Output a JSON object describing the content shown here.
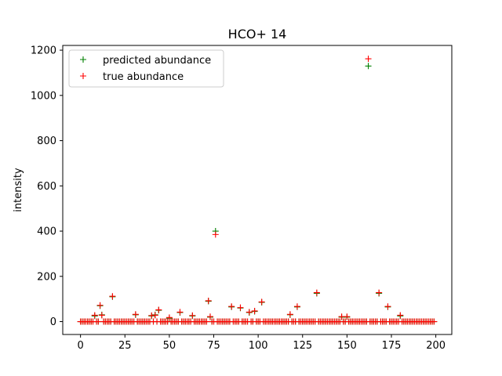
{
  "chart_data": {
    "type": "scatter",
    "title": "HCO+ 14",
    "xlabel": "",
    "ylabel": "intensity",
    "xlim": [
      -10,
      209
    ],
    "ylim": [
      -57,
      1221
    ],
    "xticks": [
      0,
      25,
      50,
      75,
      100,
      125,
      150,
      175,
      200
    ],
    "yticks": [
      0,
      200,
      400,
      600,
      800,
      1000,
      1200
    ],
    "grid": false,
    "legend_position": "top-left",
    "marker": "plus",
    "series": [
      {
        "name": "predicted abundance",
        "color": "#008000",
        "highlights": [
          [
            8,
            25
          ],
          [
            11,
            70
          ],
          [
            12,
            30
          ],
          [
            18,
            110
          ],
          [
            31,
            30
          ],
          [
            40,
            25
          ],
          [
            42,
            30
          ],
          [
            44,
            50
          ],
          [
            50,
            15
          ],
          [
            56,
            40
          ],
          [
            63,
            25
          ],
          [
            72,
            90
          ],
          [
            73,
            20
          ],
          [
            76,
            400
          ],
          [
            85,
            65
          ],
          [
            90,
            60
          ],
          [
            95,
            40
          ],
          [
            98,
            45
          ],
          [
            102,
            85
          ],
          [
            118,
            30
          ],
          [
            122,
            65
          ],
          [
            133,
            125
          ],
          [
            147,
            20
          ],
          [
            150,
            20
          ],
          [
            162,
            1130
          ],
          [
            168,
            125
          ],
          [
            173,
            65
          ],
          [
            180,
            25
          ]
        ]
      },
      {
        "name": "true abundance",
        "color": "#ff0000",
        "highlights": [
          [
            8,
            28
          ],
          [
            11,
            72
          ],
          [
            12,
            28
          ],
          [
            18,
            112
          ],
          [
            31,
            32
          ],
          [
            40,
            27
          ],
          [
            42,
            28
          ],
          [
            44,
            52
          ],
          [
            50,
            18
          ],
          [
            56,
            42
          ],
          [
            63,
            27
          ],
          [
            72,
            92
          ],
          [
            73,
            22
          ],
          [
            76,
            385
          ],
          [
            85,
            67
          ],
          [
            90,
            62
          ],
          [
            95,
            42
          ],
          [
            98,
            47
          ],
          [
            102,
            87
          ],
          [
            118,
            32
          ],
          [
            122,
            67
          ],
          [
            133,
            128
          ],
          [
            147,
            22
          ],
          [
            150,
            22
          ],
          [
            162,
            1162
          ],
          [
            168,
            128
          ],
          [
            173,
            67
          ],
          [
            180,
            28
          ]
        ]
      }
    ],
    "x_range": [
      0,
      199
    ],
    "baseline_value": 0
  }
}
